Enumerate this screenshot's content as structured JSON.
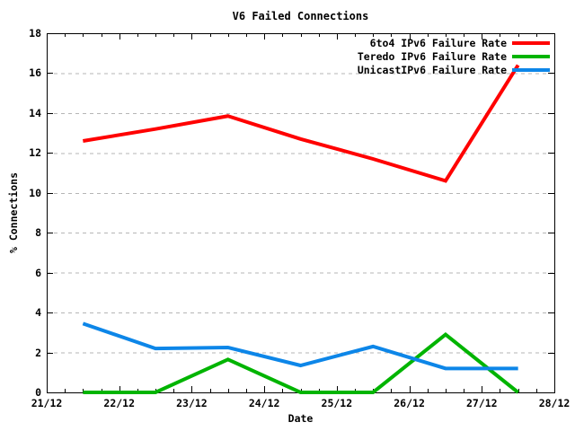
{
  "chart_data": {
    "type": "line",
    "title": "V6 Failed Connections",
    "xlabel": "Date",
    "ylabel": "% Connections",
    "x_domain": [
      21,
      28
    ],
    "ylim": [
      0,
      18
    ],
    "yticks": [
      0,
      2,
      4,
      6,
      8,
      10,
      12,
      14,
      16,
      18
    ],
    "yticklabels": [
      "0",
      "2",
      "4",
      "6",
      "8",
      "10",
      "12",
      "14",
      "16",
      "18"
    ],
    "xticks": [
      21,
      22,
      23,
      24,
      25,
      26,
      27,
      28
    ],
    "xticklabels": [
      "21/12",
      "22/12",
      "23/12",
      "24/12",
      "25/12",
      "26/12",
      "27/12",
      "28/12"
    ],
    "minor_xtick_step": 0.25,
    "grid": "horizontal-dashed",
    "legend_position": "top-right-inside",
    "x": [
      21.5,
      22.5,
      23.5,
      24.5,
      25.5,
      26.5,
      27.5
    ],
    "series": [
      {
        "name": "6to4 IPv6 Failure Rate",
        "color": "#ff0000",
        "values": [
          12.6,
          13.2,
          13.85,
          12.7,
          11.7,
          10.6,
          16.4
        ]
      },
      {
        "name": "Teredo IPv6 Failure Rate",
        "color": "#00b400",
        "values": [
          0,
          0,
          1.65,
          0,
          0,
          2.9,
          0
        ]
      },
      {
        "name": "UnicastIPv6 Failure Rate",
        "color": "#0d86e8",
        "values": [
          3.45,
          2.2,
          2.25,
          1.35,
          2.3,
          1.2,
          1.2
        ]
      }
    ],
    "colors": {
      "axis": "#000000",
      "grid": "#b5b5b5",
      "background": "#ffffff",
      "text": "#000000"
    }
  }
}
